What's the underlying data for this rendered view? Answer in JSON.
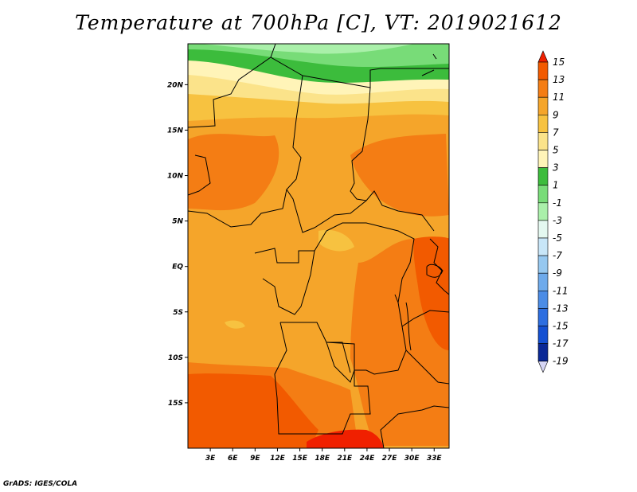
{
  "title": "Temperature at 700hPa [C], VT: 2019021612",
  "credit": "GrADS: IGES/COLA",
  "map": {
    "lon_range": [
      0,
      35
    ],
    "lat_range": [
      -20,
      24.5
    ],
    "lat_ticks": [
      {
        "value": 20,
        "label": "20N"
      },
      {
        "value": 15,
        "label": "15N"
      },
      {
        "value": 10,
        "label": "10N"
      },
      {
        "value": 5,
        "label": "5N"
      },
      {
        "value": 0,
        "label": "EQ"
      },
      {
        "value": -5,
        "label": "5S"
      },
      {
        "value": -10,
        "label": "10S"
      },
      {
        "value": -15,
        "label": "15S"
      }
    ],
    "lon_ticks": [
      {
        "value": 3,
        "label": "3E"
      },
      {
        "value": 6,
        "label": "6E"
      },
      {
        "value": 9,
        "label": "9E"
      },
      {
        "value": 12,
        "label": "12E"
      },
      {
        "value": 15,
        "label": "15E"
      },
      {
        "value": 18,
        "label": "18E"
      },
      {
        "value": 21,
        "label": "21E"
      },
      {
        "value": 24,
        "label": "24E"
      },
      {
        "value": 27,
        "label": "27E"
      },
      {
        "value": 30,
        "label": "30E"
      },
      {
        "value": 33,
        "label": "33E"
      }
    ]
  },
  "colorbar": {
    "levels": [
      "15",
      "13",
      "11",
      "9",
      "7",
      "5",
      "3",
      "1",
      "-1",
      "-3",
      "-5",
      "-7",
      "-9",
      "-11",
      "-13",
      "-15",
      "-17",
      "-19"
    ],
    "colors": [
      "#f02000",
      "#f25a00",
      "#f47d14",
      "#f5a52a",
      "#f7c240",
      "#fbe38a",
      "#fff4b8",
      "#3cbc3c",
      "#78dc78",
      "#aaf0aa",
      "#e4f8f0",
      "#c8e6f8",
      "#96c8f0",
      "#6eaaeb",
      "#4b8ce6",
      "#2d6ee0",
      "#1450d2",
      "#0a2896",
      "#d6d6f5"
    ]
  }
}
